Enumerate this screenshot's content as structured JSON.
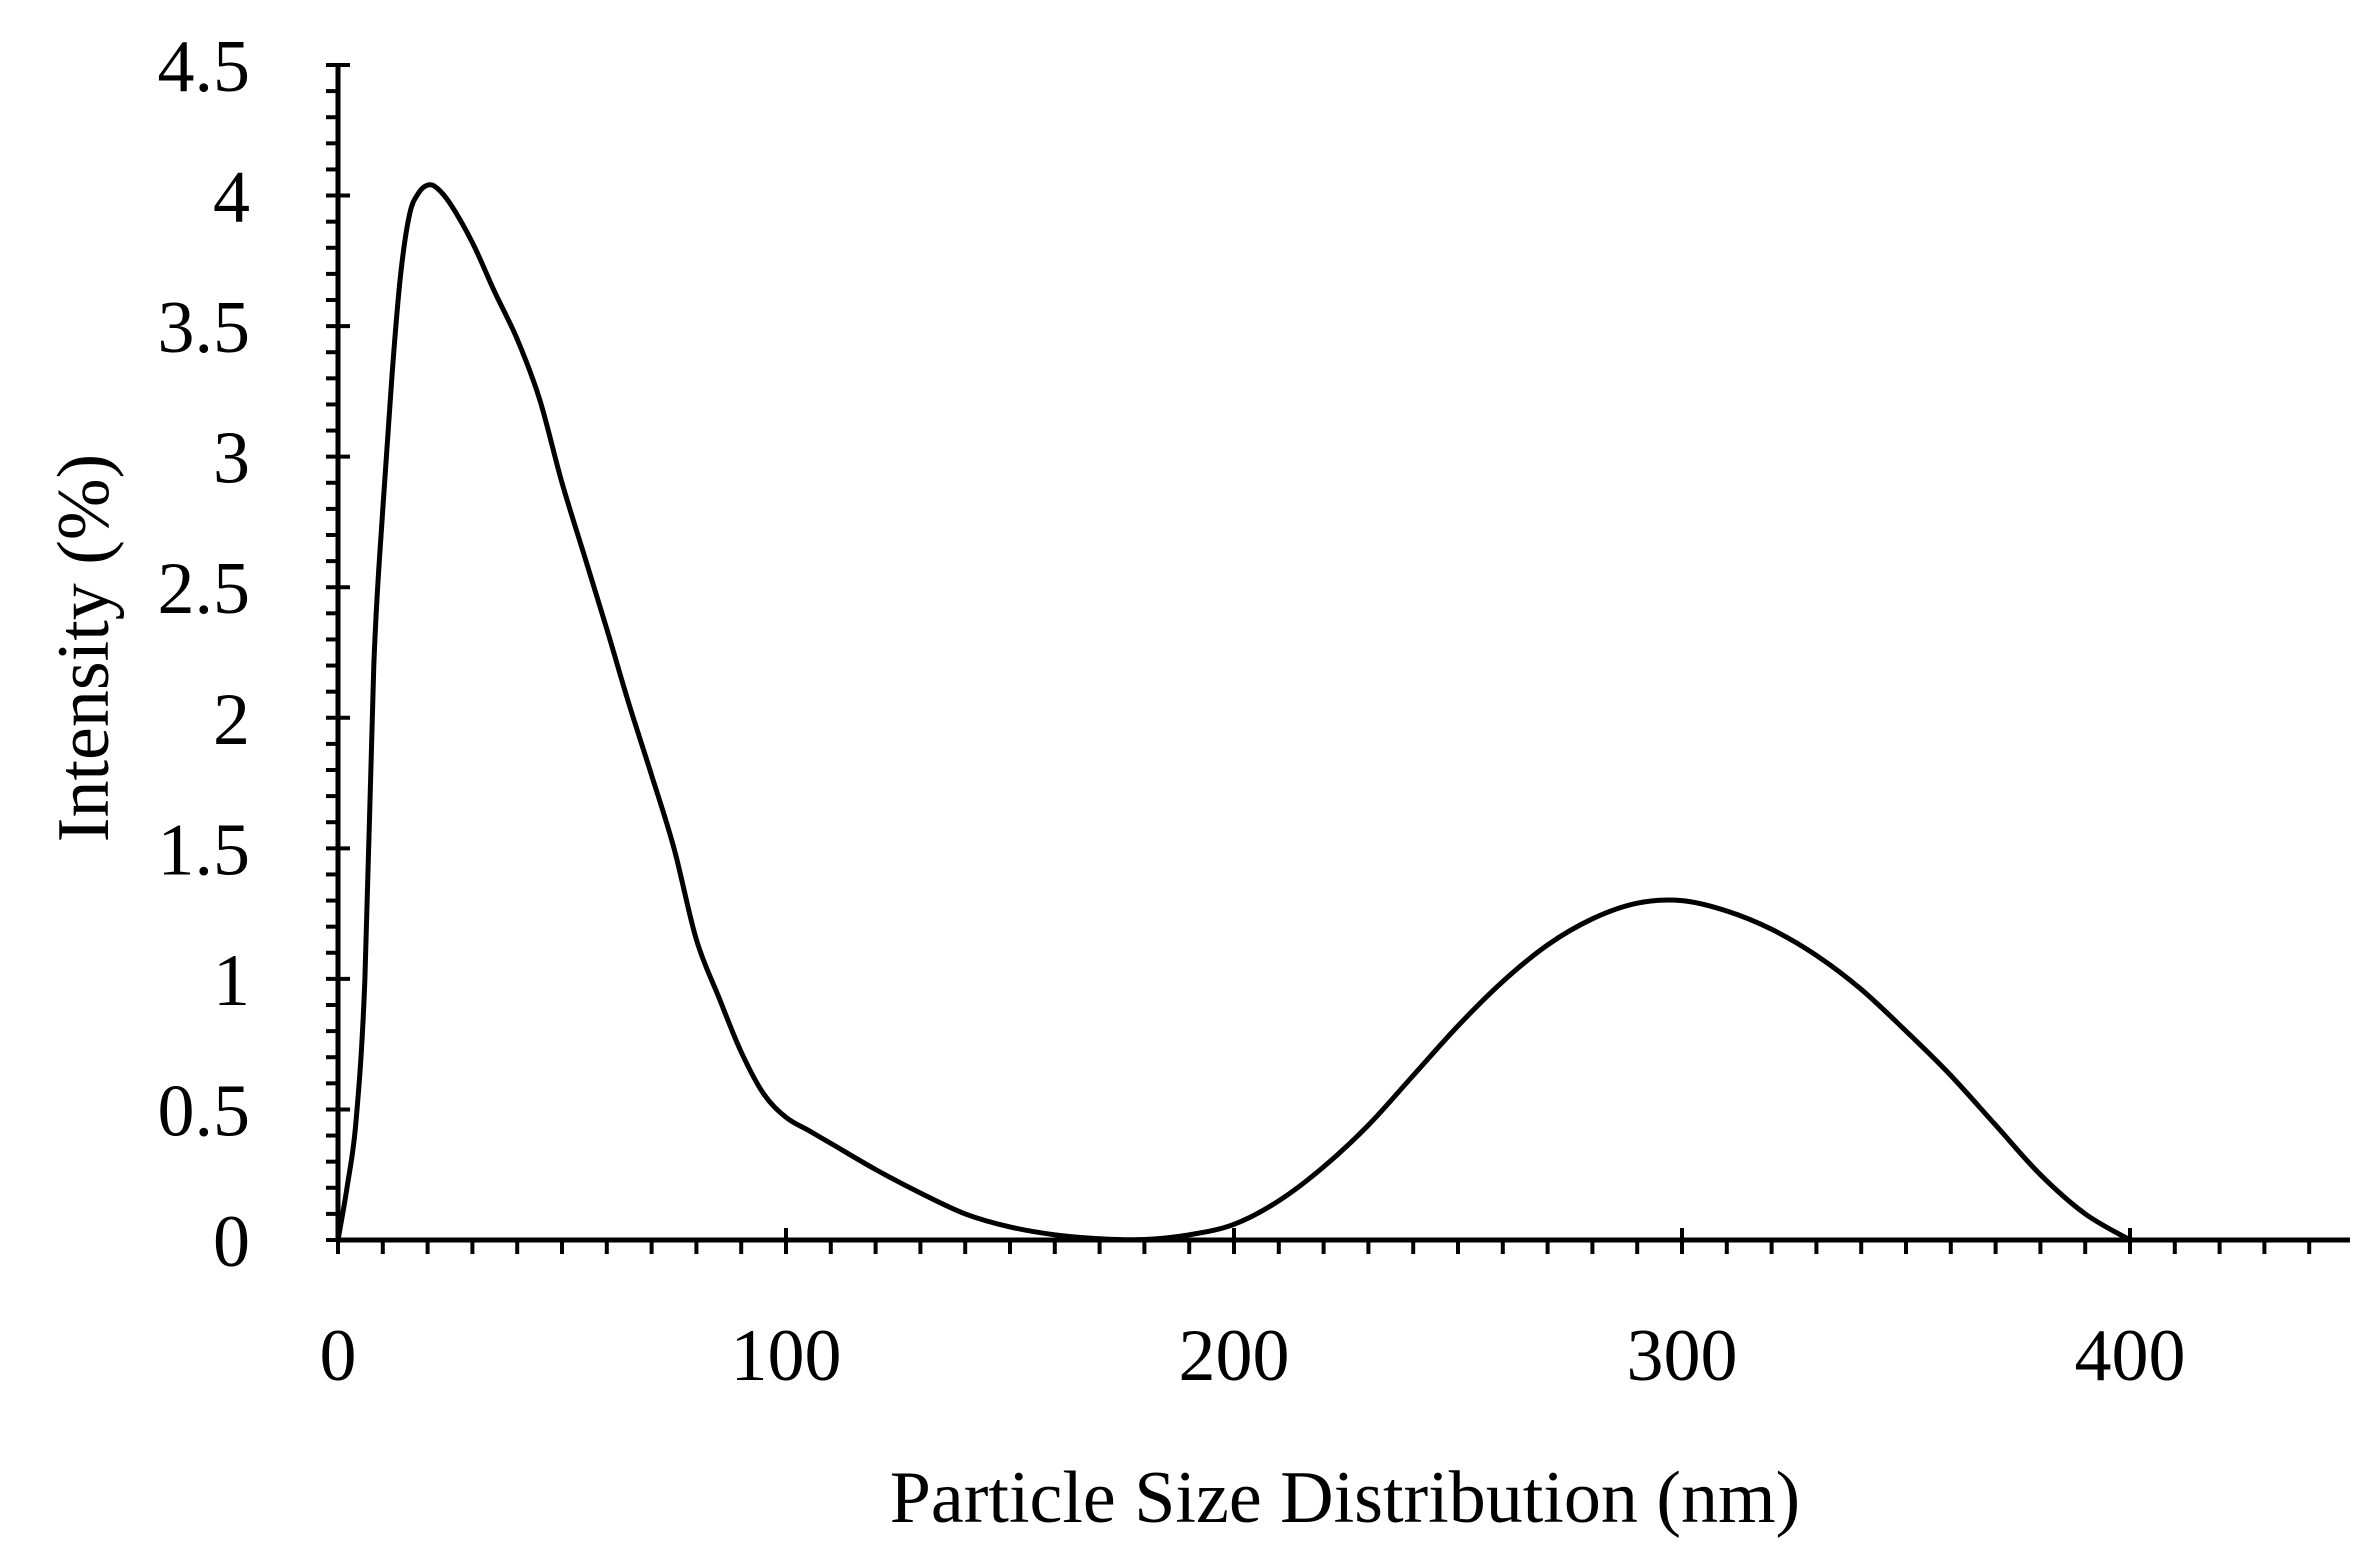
{
  "chart_data": {
    "type": "line",
    "title": "",
    "xlabel": "Particle Size Distribution (nm)",
    "ylabel": "Intensity (%)",
    "xlim": [
      0,
      450
    ],
    "ylim": [
      0,
      4.5
    ],
    "x_ticks": [
      0,
      100,
      200,
      300,
      400
    ],
    "x_tick_labels": [
      "0",
      "100",
      "200",
      "300",
      "400"
    ],
    "x_minor_step": 10,
    "y_ticks": [
      0,
      0.5,
      1,
      1.5,
      2,
      2.5,
      3,
      3.5,
      4,
      4.5
    ],
    "y_tick_labels": [
      "0",
      "0.5",
      "1",
      "1.5",
      "2",
      "2.5",
      "3",
      "3.5",
      "4",
      "4.5"
    ],
    "y_minor_step": 0.1,
    "grid": false,
    "legend": "none",
    "line_color": "#000000",
    "series": [
      {
        "x": [
          0,
          2,
          4,
          6,
          8,
          10,
          12,
          14,
          16,
          18,
          20,
          22,
          25,
          30,
          35,
          40,
          45,
          50,
          55,
          60,
          65,
          70,
          75,
          80,
          85,
          90,
          95,
          100,
          105,
          110,
          120,
          130,
          140,
          150,
          160,
          170,
          180,
          190,
          200,
          210,
          220,
          230,
          240,
          250,
          260,
          270,
          280,
          290,
          300,
          310,
          320,
          330,
          340,
          350,
          360,
          370,
          380,
          390,
          400
        ],
        "values": [
          0,
          0.2,
          0.45,
          1.0,
          2.2,
          2.8,
          3.3,
          3.7,
          3.93,
          4.01,
          4.04,
          4.03,
          3.97,
          3.82,
          3.63,
          3.45,
          3.22,
          2.9,
          2.62,
          2.34,
          2.05,
          1.78,
          1.5,
          1.15,
          0.93,
          0.72,
          0.56,
          0.47,
          0.42,
          0.37,
          0.27,
          0.18,
          0.1,
          0.05,
          0.02,
          0.005,
          0.002,
          0.02,
          0.06,
          0.15,
          0.28,
          0.44,
          0.63,
          0.82,
          0.99,
          1.13,
          1.23,
          1.29,
          1.3,
          1.26,
          1.19,
          1.09,
          0.96,
          0.8,
          0.63,
          0.44,
          0.25,
          0.1,
          0
        ]
      }
    ]
  }
}
